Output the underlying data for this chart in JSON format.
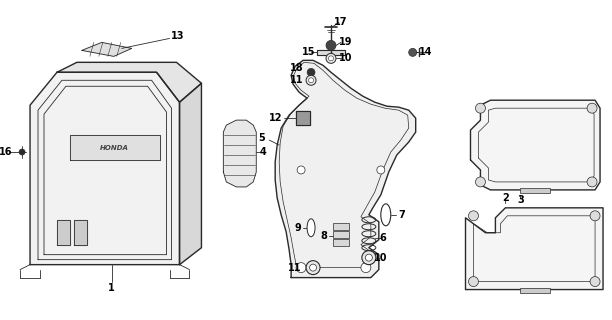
{
  "bg_color": "#ffffff",
  "line_color": "#2a2a2a",
  "fig_width": 6.12,
  "fig_height": 3.2,
  "dpi": 100
}
